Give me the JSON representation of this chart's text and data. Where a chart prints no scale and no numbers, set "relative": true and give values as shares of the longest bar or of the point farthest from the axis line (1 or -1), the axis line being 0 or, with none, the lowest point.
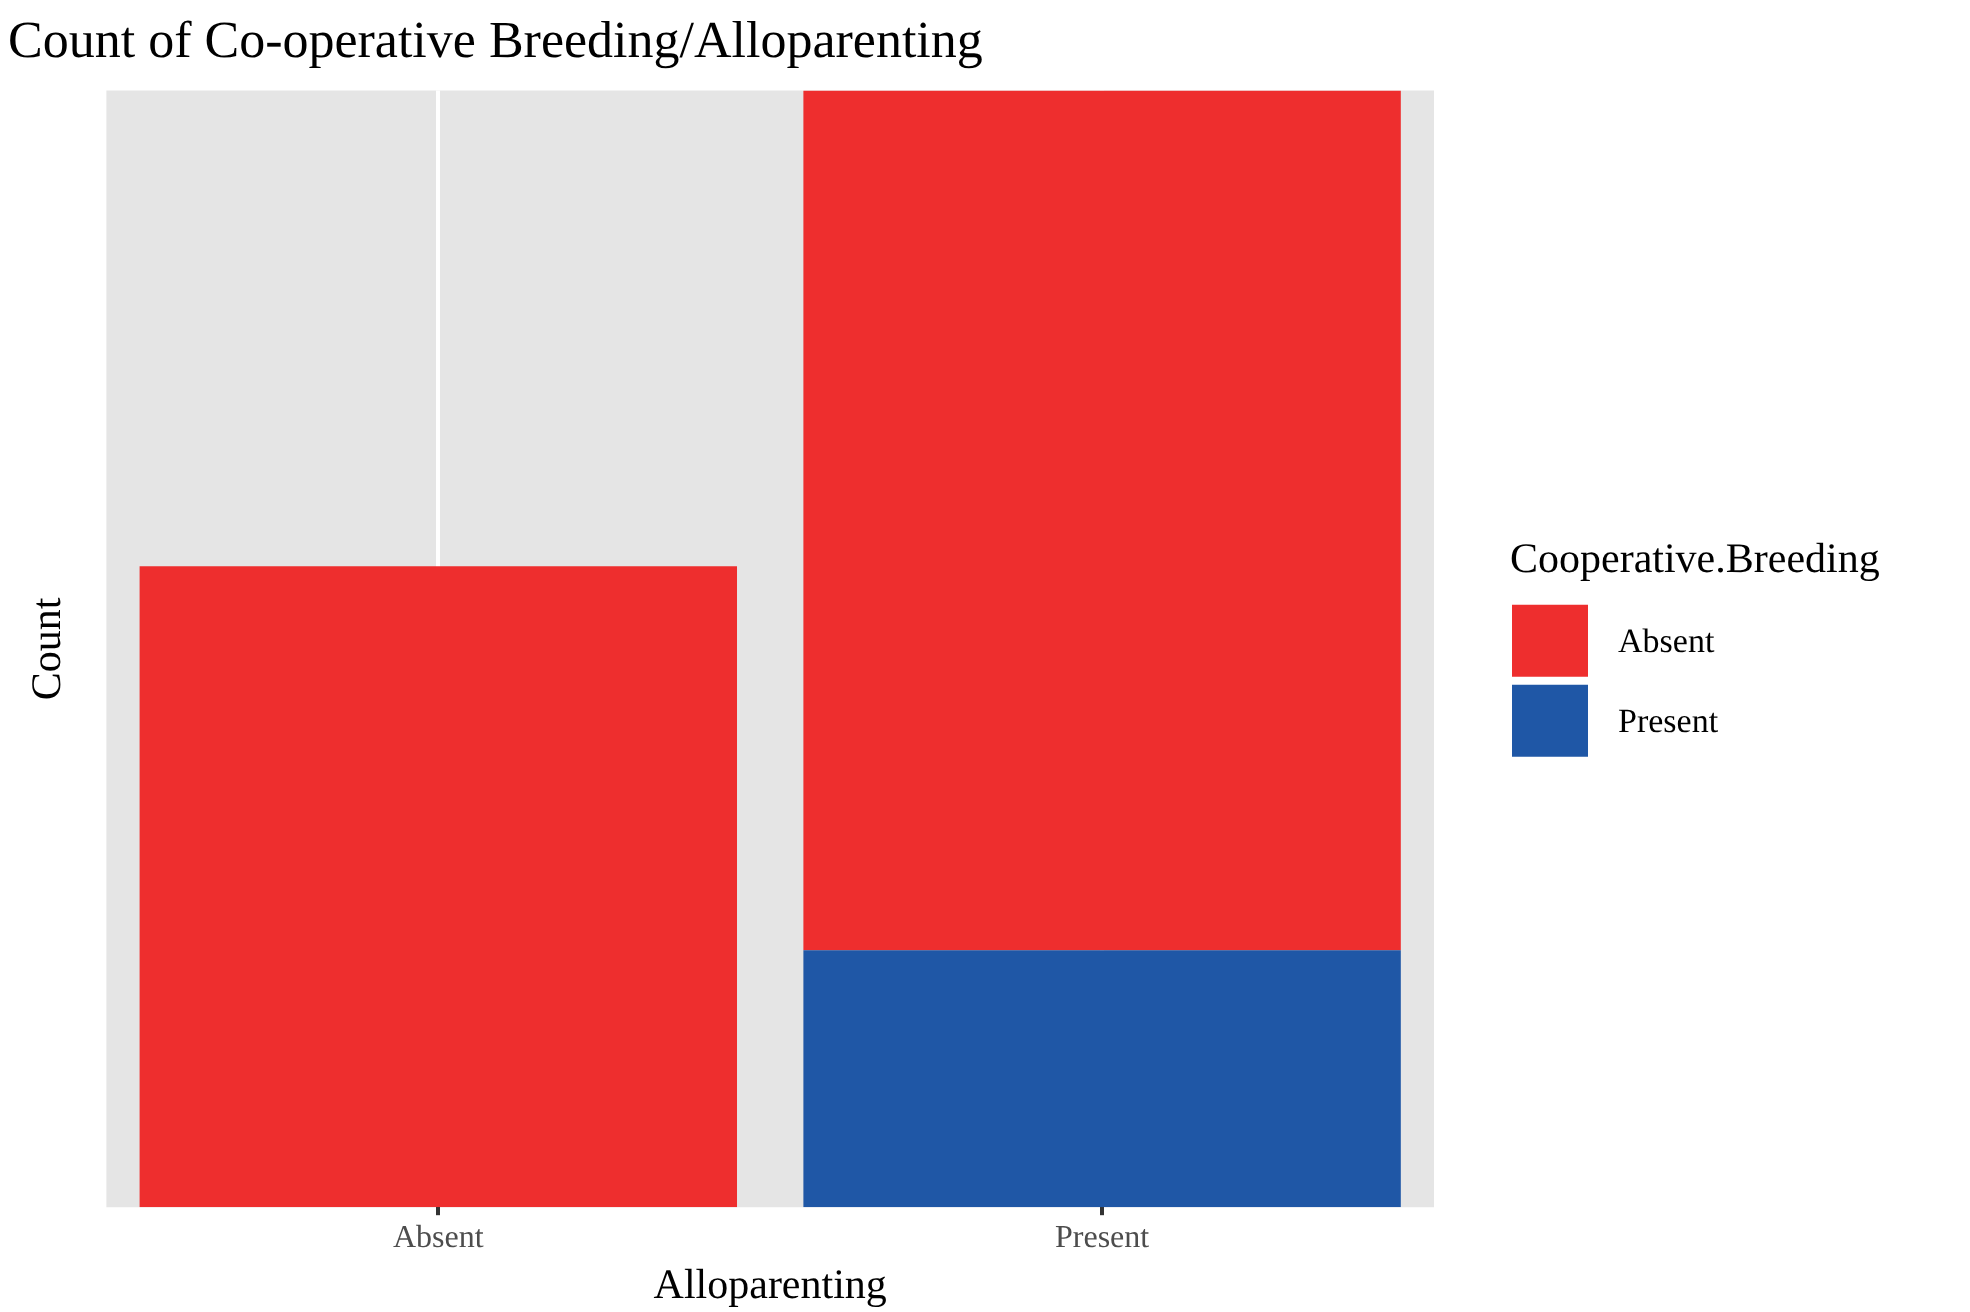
{
  "chart_data": {
    "type": "bar",
    "title": "Count of Co-operative Breeding/Alloparenting",
    "xlabel": "Alloparenting",
    "ylabel": "Count",
    "legend_title": "Cooperative.Breeding",
    "categories": [
      "Absent",
      "Present"
    ],
    "stacked": true,
    "relative": true,
    "grid": "x",
    "legend": "right",
    "series": [
      {
        "name": "Present",
        "color": "#1f57a6",
        "values": [
          null,
          0.23
        ]
      },
      {
        "name": "Absent",
        "color": "#ee2e2e",
        "values": [
          0.574,
          0.77
        ]
      }
    ]
  }
}
